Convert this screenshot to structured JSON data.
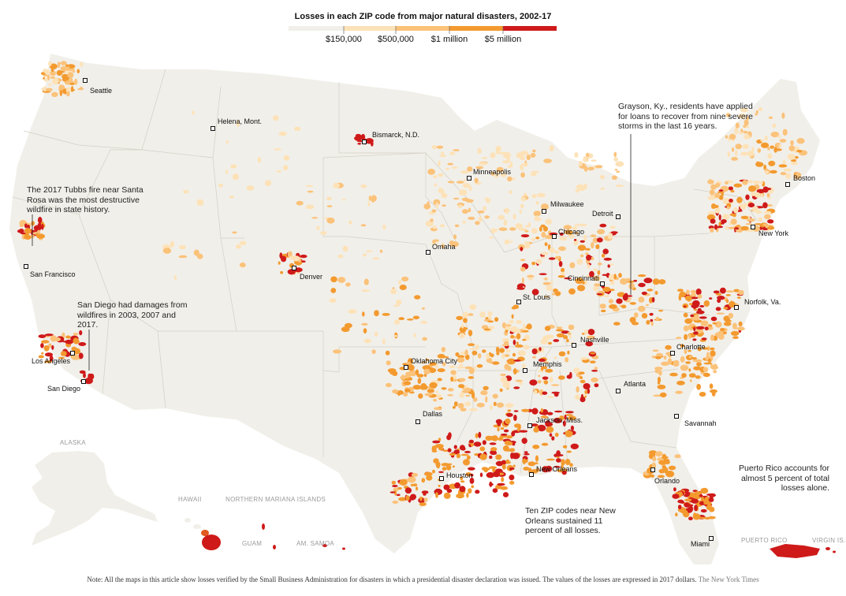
{
  "legend": {
    "title": "Losses in each ZIP code from major natural disasters, 2002-17",
    "labels": [
      "$150,000",
      "$500,000",
      "$1 million",
      "$5 million"
    ],
    "colors": [
      "#f1efe9",
      "#fde2b8",
      "#fbc27a",
      "#f39a2f",
      "#cf1a1a"
    ]
  },
  "cities": [
    {
      "name": "Seattle"
    },
    {
      "name": "Helena, Mont."
    },
    {
      "name": "Bismarck, N.D."
    },
    {
      "name": "Minneapolis"
    },
    {
      "name": "Milwaukee"
    },
    {
      "name": "Detroit"
    },
    {
      "name": "Boston"
    },
    {
      "name": "Chicago"
    },
    {
      "name": "New York"
    },
    {
      "name": "Omaha"
    },
    {
      "name": "Denver"
    },
    {
      "name": "San Francisco"
    },
    {
      "name": "Cincinnati"
    },
    {
      "name": "St. Louis"
    },
    {
      "name": "Norfolk, Va."
    },
    {
      "name": "Nashville"
    },
    {
      "name": "Charlotte"
    },
    {
      "name": "Oklahoma City"
    },
    {
      "name": "Memphis"
    },
    {
      "name": "Los Angeles"
    },
    {
      "name": "San Diego"
    },
    {
      "name": "Atlanta"
    },
    {
      "name": "Dallas"
    },
    {
      "name": "Jackson, Miss."
    },
    {
      "name": "Savannah"
    },
    {
      "name": "Houston"
    },
    {
      "name": "New Orleans"
    },
    {
      "name": "Orlando"
    },
    {
      "name": "Miami"
    }
  ],
  "regions": [
    "ALASKA",
    "HAWAII",
    "NORTHERN MARIANA ISLANDS",
    "GUAM",
    "AM. SAMOA",
    "PUERTO RICO",
    "VIRGIN IS."
  ],
  "annotations": {
    "tubbs": "The 2017 Tubbs fire near Santa Rosa was the most destructive wildfire in state history.",
    "san_diego": "San Diego had damages from wildfires in 2003, 2007 and 2017.",
    "grayson": "Grayson, Ky., residents have applied for loans to recover from nine severe storms in the last 16 years.",
    "puerto_rico": "Puerto Rico accounts for almost 5 percent of total losses alone.",
    "new_orleans": "Ten ZIP codes near New Orleans sustained 11 percent of all losses."
  },
  "footnote": {
    "text": "Note: All the maps in this article show losses verified by the Small Business Administration for disasters in which a presidential disaster declaration was issued. The values of the losses are expressed in 2017 dollars.",
    "credit": "The New York Times"
  }
}
